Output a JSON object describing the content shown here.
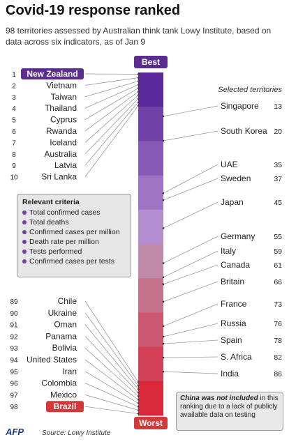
{
  "header": {
    "title": "Covid-19 response ranked",
    "subtitle": "98 territories assessed by Australian think tank Lowy Institute, based on data across six indicators, as of Jan 9"
  },
  "chart_data": {
    "type": "ranking",
    "scale_top_label": "Best",
    "scale_bottom_label": "Worst",
    "selected_header": "Selected territories",
    "top10": [
      {
        "rank": "1",
        "name": "New Zealand",
        "highlight": true
      },
      {
        "rank": "2",
        "name": "Vietnam"
      },
      {
        "rank": "3",
        "name": "Taiwan"
      },
      {
        "rank": "4",
        "name": "Thailand"
      },
      {
        "rank": "5",
        "name": "Cyprus"
      },
      {
        "rank": "6",
        "name": "Rwanda"
      },
      {
        "rank": "7",
        "name": "Iceland"
      },
      {
        "rank": "8",
        "name": "Australia"
      },
      {
        "rank": "9",
        "name": "Latvia"
      },
      {
        "rank": "10",
        "name": "Sri Lanka"
      }
    ],
    "bottom10": [
      {
        "rank": "89",
        "name": "Chile"
      },
      {
        "rank": "90",
        "name": "Ukraine"
      },
      {
        "rank": "91",
        "name": "Oman"
      },
      {
        "rank": "92",
        "name": "Panama"
      },
      {
        "rank": "93",
        "name": "Bolivia"
      },
      {
        "rank": "94",
        "name": "United States"
      },
      {
        "rank": "95",
        "name": "Iran"
      },
      {
        "rank": "96",
        "name": "Colombia"
      },
      {
        "rank": "97",
        "name": "Mexico"
      },
      {
        "rank": "98",
        "name": "Brazil",
        "highlight": true
      }
    ],
    "selected": [
      {
        "name": "Singapore",
        "rank": "13"
      },
      {
        "name": "South Korea",
        "rank": "20"
      },
      {
        "name": "UAE",
        "rank": "35"
      },
      {
        "name": "Sweden",
        "rank": "37"
      },
      {
        "name": "Japan",
        "rank": "45"
      },
      {
        "name": "Germany",
        "rank": "55"
      },
      {
        "name": "Italy",
        "rank": "59"
      },
      {
        "name": "Canada",
        "rank": "61"
      },
      {
        "name": "Britain",
        "rank": "66"
      },
      {
        "name": "France",
        "rank": "73"
      },
      {
        "name": "Russia",
        "rank": "76"
      },
      {
        "name": "Spain",
        "rank": "78"
      },
      {
        "name": "S. Africa",
        "rank": "82"
      },
      {
        "name": "India",
        "rank": "86"
      }
    ],
    "colors": {
      "best": "#5a2a9a",
      "worst": "#d8283a",
      "highlight_best": "#5b2d91",
      "highlight_worst": "#d23a3a"
    }
  },
  "criteria": {
    "heading": "Relevant criteria",
    "items": [
      "Total confirmed cases",
      "Total deaths",
      "Confirmed cases per million",
      "Death rate per million",
      "Tests performed",
      "Confirmed cases per tests"
    ]
  },
  "note": {
    "emphasis": "China was not included",
    "text": "in this ranking due to a lack of publicly available data on testing"
  },
  "footer": {
    "logo": "AFP",
    "source": "Source: Lowy Institute"
  }
}
